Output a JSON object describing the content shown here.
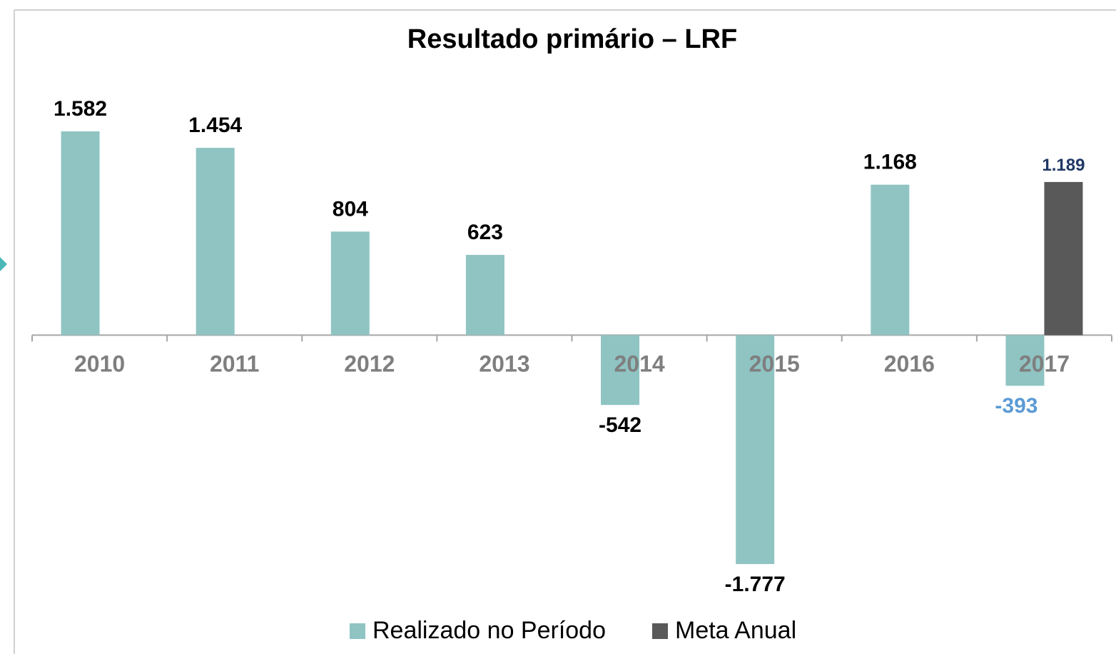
{
  "chart_data": {
    "type": "bar",
    "title": "Resultado primário – LRF",
    "categories": [
      "2010",
      "2011",
      "2012",
      "2013",
      "2014",
      "2015",
      "2016",
      "2017"
    ],
    "series": [
      {
        "name": "Realizado no Período",
        "color": "#8fc4c3",
        "values": [
          1582,
          1454,
          804,
          623,
          -542,
          -1777,
          1168,
          -393
        ],
        "value_labels": [
          "1.582",
          "1.454",
          "804",
          "623",
          "-542",
          "-1.777",
          "1.168",
          "-393"
        ]
      },
      {
        "name": "Meta Anual",
        "color": "#595959",
        "values": [
          null,
          null,
          null,
          null,
          null,
          null,
          null,
          1189
        ],
        "value_labels": [
          null,
          null,
          null,
          null,
          null,
          null,
          null,
          "1.189"
        ]
      }
    ],
    "legend": "bottom"
  }
}
